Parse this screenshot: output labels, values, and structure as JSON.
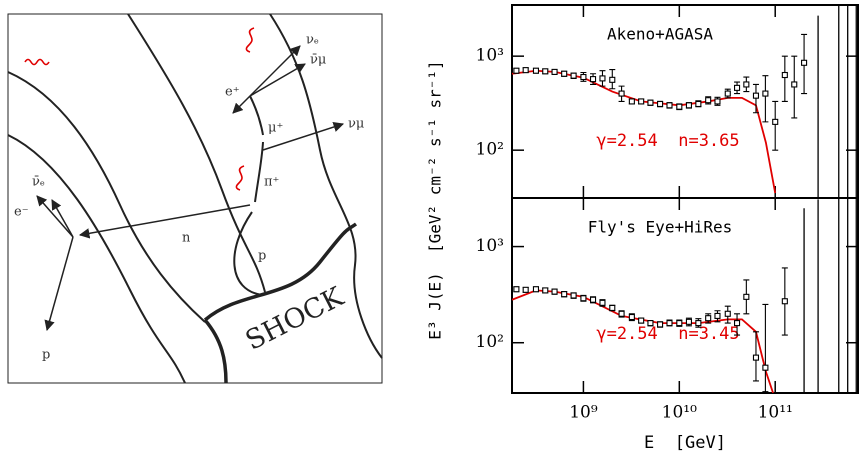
{
  "diagram": {
    "labels": [
      "νₑ",
      "ν̄μ",
      "e⁺",
      "μ⁺",
      "νμ",
      "π⁺",
      "ν̄ₑ",
      "e⁻",
      "n",
      "p",
      "p",
      "SHOCK"
    ]
  },
  "xlabel": "E  [GeV]",
  "ylabel": "E³ J(E)  [GeV² cm⁻² s⁻¹ sr⁻¹]",
  "chart_data": [
    {
      "type": "scatter",
      "title": "Akeno+AGASA",
      "annotation": "γ=2.54  n=3.65",
      "xscale": "log",
      "yscale": "log",
      "color": "#000000",
      "x": [
        200000000.0,
        250000000.0,
        320000000.0,
        400000000.0,
        500000000.0,
        630000000.0,
        790000000.0,
        1000000000.0,
        1260000000.0,
        1580000000.0,
        2000000000.0,
        2500000000.0,
        3200000000.0,
        4000000000.0,
        5000000000.0,
        6300000000.0,
        7900000000.0,
        10000000000.0,
        12600000000.0,
        15800000000.0,
        20000000000.0,
        25000000000.0,
        32000000000.0,
        40000000000.0,
        50000000000.0,
        63000000000.0,
        79000000000.0,
        100000000000.0,
        126000000000.0,
        158000000000.0,
        200000000000.0
      ],
      "values": [
        700,
        710,
        700,
        690,
        680,
        650,
        620,
        600,
        570,
        580,
        560,
        400,
        330,
        330,
        320,
        310,
        300,
        290,
        300,
        310,
        340,
        330,
        400,
        460,
        500,
        380,
        400,
        200,
        630,
        500,
        850
      ],
      "lower": [
        660,
        670,
        660,
        650,
        640,
        610,
        580,
        540,
        500,
        480,
        450,
        330,
        310,
        310,
        300,
        290,
        280,
        270,
        280,
        290,
        310,
        300,
        360,
        400,
        420,
        250,
        200,
        100,
        330,
        220,
        400
      ],
      "upper": [
        740,
        750,
        740,
        730,
        720,
        690,
        660,
        670,
        650,
        700,
        720,
        480,
        350,
        350,
        340,
        330,
        320,
        310,
        320,
        335,
        370,
        365,
        445,
        530,
        600,
        500,
        620,
        330,
        1000,
        1000,
        1700
      ],
      "limits": {
        "x": [
          280000000000.0,
          460000000000.0,
          570000000000.0,
          700000000000.0
        ],
        "upper": [
          2700,
          3500,
          3500,
          3500
        ]
      },
      "fit": {
        "color": "#e00000",
        "x": [
          180000000.0,
          320000000.0,
          500000000.0,
          1000000000.0,
          2000000000.0,
          4000000000.0,
          10000000000.0,
          20000000000.0,
          32000000000.0,
          45000000000.0,
          63000000000.0,
          80000000000.0,
          100000000000.0
        ],
        "values": [
          650,
          700,
          680,
          590,
          420,
          330,
          300,
          330,
          360,
          360,
          300,
          120,
          35
        ]
      },
      "xlim": [
        180000000.0,
        730000000000.0
      ],
      "ylim": [
        31,
        3500
      ],
      "yticks": [
        {
          "value": 100,
          "label": "10²"
        },
        {
          "value": 1000,
          "label": "10³"
        }
      ]
    },
    {
      "type": "scatter",
      "title": "Fly's Eye+HiRes",
      "annotation": "γ=2.54  n=3.45",
      "xscale": "log",
      "yscale": "log",
      "color": "#000000",
      "x": [
        200000000.0,
        250000000.0,
        320000000.0,
        400000000.0,
        500000000.0,
        630000000.0,
        790000000.0,
        1000000000.0,
        1260000000.0,
        1580000000.0,
        2000000000.0,
        2500000000.0,
        3200000000.0,
        4000000000.0,
        5000000000.0,
        6300000000.0,
        7900000000.0,
        10000000000.0,
        12600000000.0,
        15800000000.0,
        20000000000.0,
        25000000000.0,
        32000000000.0,
        40000000000.0,
        50000000000.0,
        63000000000.0,
        79000000000.0,
        126000000000.0
      ],
      "values": [
        360,
        355,
        360,
        350,
        340,
        320,
        310,
        290,
        280,
        260,
        230,
        200,
        185,
        170,
        160,
        155,
        160,
        160,
        165,
        160,
        180,
        190,
        200,
        160,
        300,
        70,
        55,
        270
      ],
      "lower": [
        340,
        335,
        340,
        330,
        320,
        300,
        290,
        270,
        260,
        240,
        215,
        185,
        170,
        160,
        150,
        145,
        150,
        148,
        150,
        145,
        160,
        165,
        160,
        120,
        200,
        40,
        31,
        120
      ],
      "upper": [
        380,
        375,
        380,
        370,
        360,
        340,
        330,
        310,
        300,
        280,
        245,
        215,
        200,
        180,
        170,
        165,
        172,
        172,
        180,
        178,
        200,
        215,
        240,
        200,
        450,
        130,
        250,
        600
      ],
      "limits": {
        "x": [
          200000000000.0,
          280000000000.0,
          460000000000.0,
          570000000000.0,
          700000000000.0
        ],
        "upper": [
          2500,
          3100,
          3200,
          3200,
          3200
        ]
      },
      "fit": {
        "color": "#e00000",
        "x": [
          180000000.0,
          320000000.0,
          500000000.0,
          1000000000.0,
          2500000000.0,
          6300000000.0,
          15800000000.0,
          32000000000.0,
          45000000000.0,
          63000000000.0,
          80000000000.0,
          95000000000.0
        ],
        "values": [
          280,
          350,
          340,
          300,
          190,
          160,
          160,
          175,
          175,
          130,
          50,
          30
        ]
      },
      "xlim": [
        180000000.0,
        730000000000.0
      ],
      "ylim": [
        30,
        3200
      ],
      "yticks": [
        {
          "value": 100,
          "label": "10²"
        },
        {
          "value": 1000,
          "label": "10³"
        }
      ],
      "xticks": [
        {
          "value": 1000000000.0,
          "label": "10⁹"
        },
        {
          "value": 10000000000.0,
          "label": "10¹⁰"
        },
        {
          "value": 100000000000.0,
          "label": "10¹¹"
        }
      ]
    }
  ]
}
